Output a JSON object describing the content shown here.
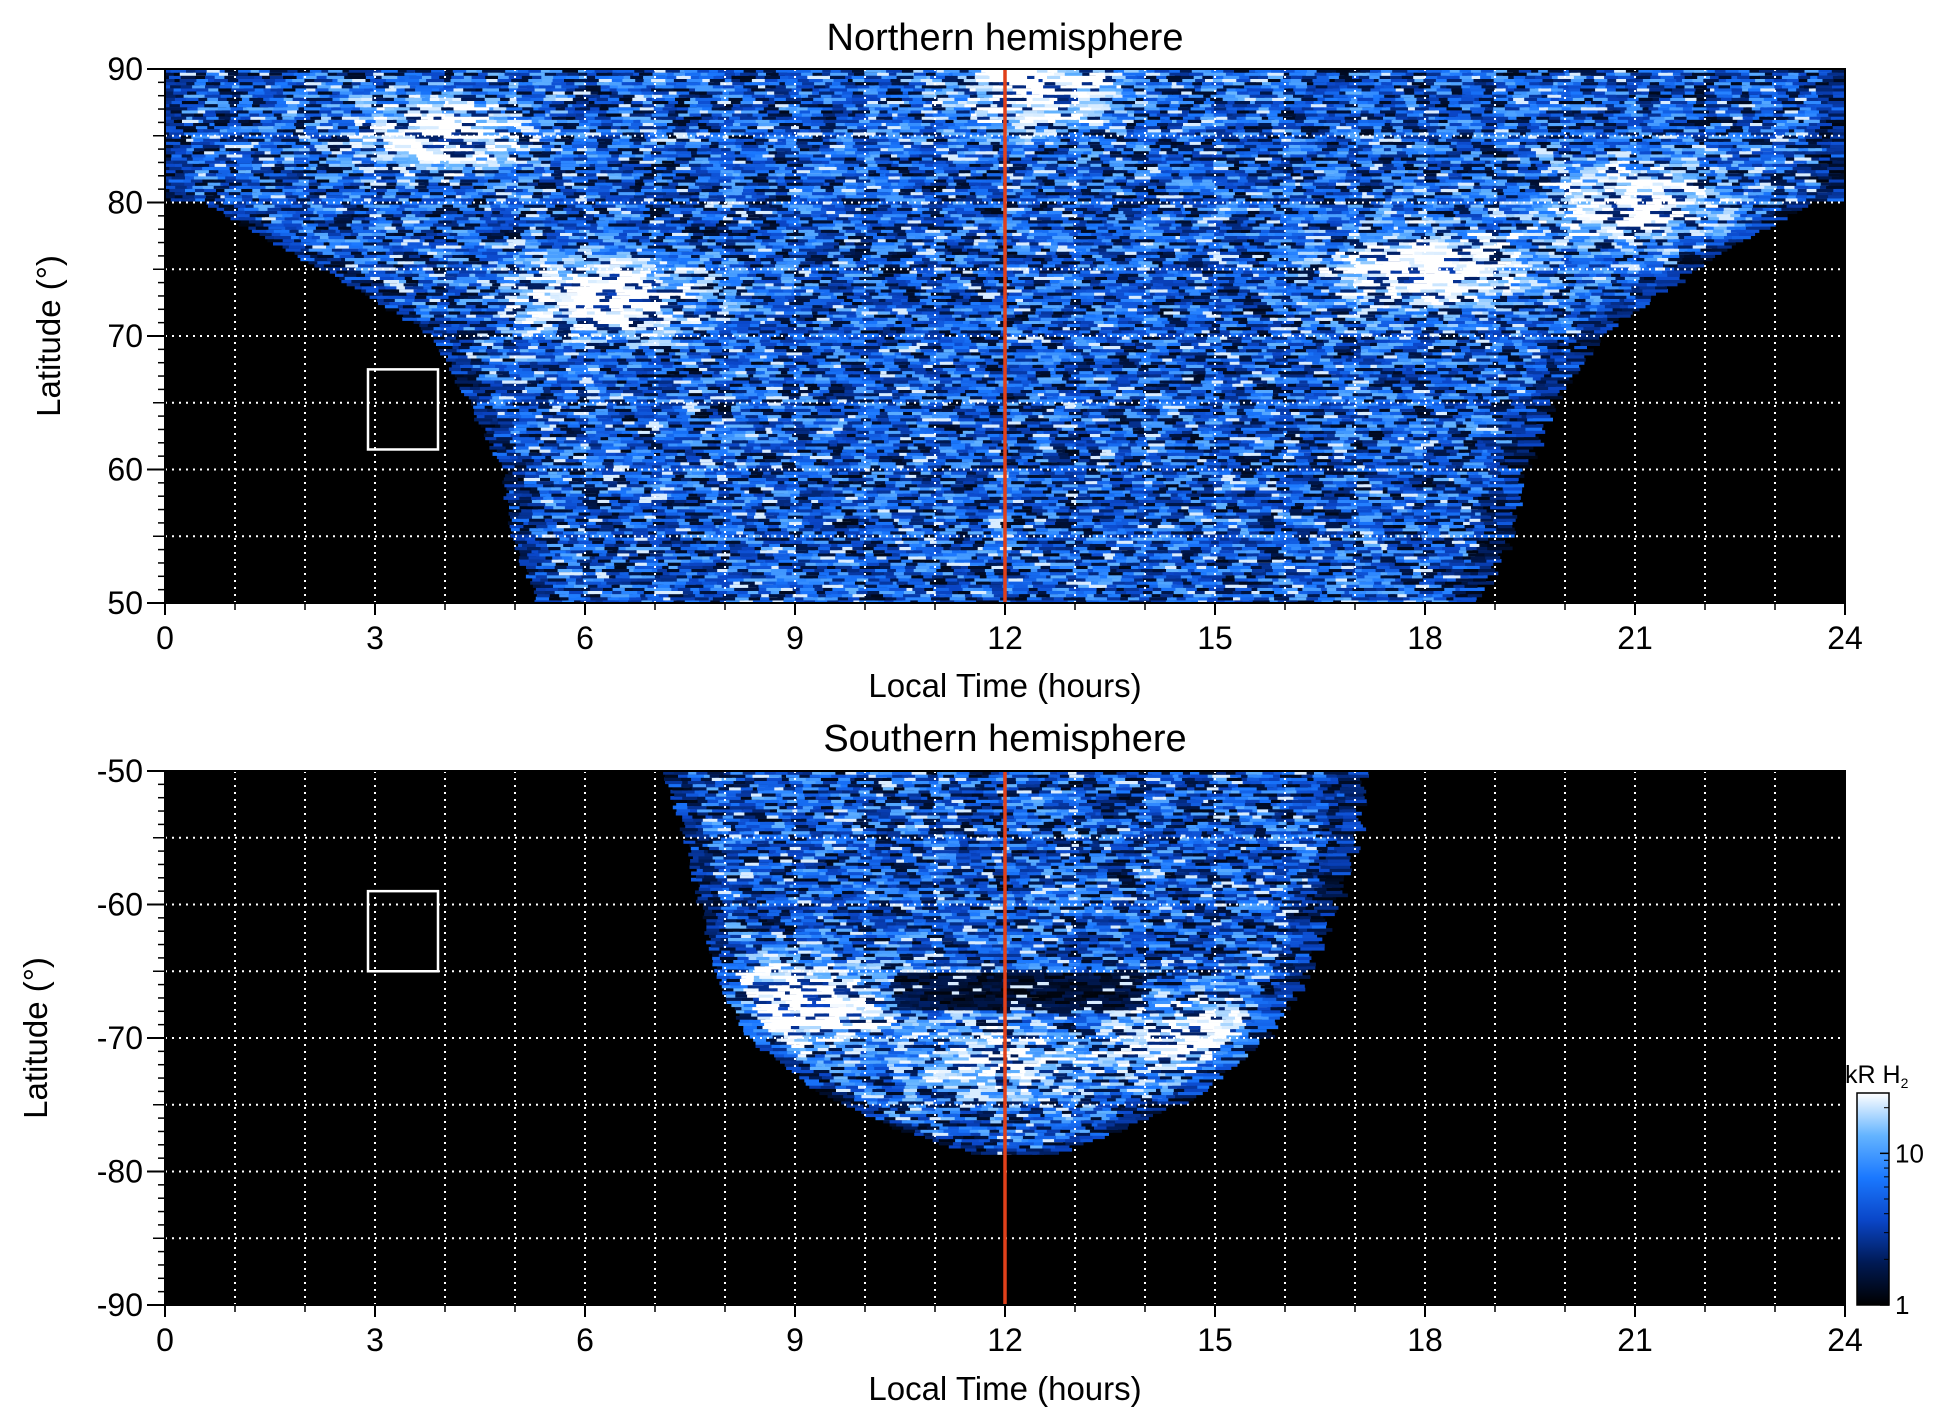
{
  "chart_data": [
    {
      "type": "heatmap",
      "title": "Northern hemisphere",
      "xlabel": "Local Time (hours)",
      "ylabel": "Latitude (°)",
      "xlim": [
        0,
        24
      ],
      "ylim": [
        50,
        90
      ],
      "xticks": [
        "0",
        "3",
        "6",
        "9",
        "12",
        "15",
        "18",
        "21",
        "24"
      ],
      "yticks": [
        "50",
        "60",
        "70",
        "80",
        "90"
      ],
      "grid": true,
      "reference_line": {
        "local_time": 12,
        "color": "#e0401a"
      },
      "box": {
        "lt": [
          2.9,
          3.9
        ],
        "lat": [
          61.5,
          67.5
        ]
      },
      "background": "#000000",
      "cmap": [
        "#000000",
        "#001a55",
        "#0a46c8",
        "#1a78ff",
        "#64b4ff",
        "#ffffff"
      ],
      "coverage": [
        {
          "lat": 90,
          "lt_min": 0.0,
          "lt_max": 24.0
        },
        {
          "lat": 85,
          "lt_min": 0.0,
          "lt_max": 24.0
        },
        {
          "lat": 80.2,
          "lt_min": 0.0,
          "lt_max": 24.0
        },
        {
          "lat": 80,
          "lt_min": 0.6,
          "lt_max": 23.4
        },
        {
          "lat": 75,
          "lt_min": 2.3,
          "lt_max": 21.7
        },
        {
          "lat": 70,
          "lt_min": 3.9,
          "lt_max": 20.4
        },
        {
          "lat": 65,
          "lt_min": 4.4,
          "lt_max": 19.7
        },
        {
          "lat": 60,
          "lt_min": 4.9,
          "lt_max": 19.3
        },
        {
          "lat": 55,
          "lt_min": 5.0,
          "lt_max": 19.1
        },
        {
          "lat": 50,
          "lt_min": 5.4,
          "lt_max": 18.6
        }
      ],
      "bright_regions": [
        {
          "lt": 6.3,
          "lat": 73.0,
          "intensity": 0.9
        },
        {
          "lt": 18.0,
          "lat": 75.0,
          "intensity": 0.9
        },
        {
          "lt": 21.0,
          "lat": 80.0,
          "intensity": 0.75
        },
        {
          "lt": 4.0,
          "lat": 85.0,
          "intensity": 0.75
        },
        {
          "lt": 12.5,
          "lat": 88.5,
          "intensity": 0.8
        }
      ]
    },
    {
      "type": "heatmap",
      "title": "Southern hemisphere",
      "xlabel": "Local Time (hours)",
      "ylabel": "Latitude (°)",
      "xlim": [
        0,
        24
      ],
      "ylim": [
        -90,
        -50
      ],
      "xticks": [
        "0",
        "3",
        "6",
        "9",
        "12",
        "15",
        "18",
        "21",
        "24"
      ],
      "yticks": [
        "-90",
        "-80",
        "-70",
        "-60",
        "-50"
      ],
      "grid": true,
      "reference_line": {
        "local_time": 12,
        "color": "#e0401a"
      },
      "box": {
        "lt": [
          2.9,
          3.9
        ],
        "lat": [
          -65,
          -59
        ]
      },
      "background": "#000000",
      "cmap": [
        "#000000",
        "#001a55",
        "#0a46c8",
        "#1a78ff",
        "#64b4ff",
        "#ffffff"
      ],
      "coverage": [
        {
          "lat": -50,
          "lt_min": 7.2,
          "lt_max": 17.0
        },
        {
          "lat": -55,
          "lt_min": 7.5,
          "lt_max": 16.9
        },
        {
          "lat": -60,
          "lt_min": 7.7,
          "lt_max": 16.6
        },
        {
          "lat": -65,
          "lt_min": 7.9,
          "lt_max": 16.2
        },
        {
          "lat": -70,
          "lt_min": 8.4,
          "lt_max": 15.6
        },
        {
          "lat": -74,
          "lt_min": 9.4,
          "lt_max": 14.7
        },
        {
          "lat": -77,
          "lt_min": 10.6,
          "lt_max": 13.5
        },
        {
          "lat": -78.6,
          "lt_min": 11.6,
          "lt_max": 12.6
        }
      ],
      "bright_regions": [
        {
          "lt": 9.0,
          "lat": -67.5,
          "intensity": 1.0
        },
        {
          "lt": 15.0,
          "lat": -70.0,
          "intensity": 0.75
        },
        {
          "lt": 12.0,
          "lat": -72.0,
          "intensity": 0.6
        }
      ],
      "dark_band": {
        "lat": [
          -68,
          -65
        ],
        "lt": [
          10.5,
          14.0
        ]
      }
    }
  ],
  "colorbar": {
    "label": "kR H",
    "label_subscript": "2",
    "scale": "log",
    "range": [
      1,
      25
    ],
    "ticks": [
      "1",
      "10"
    ],
    "colors": [
      "#000000",
      "#001a55",
      "#0a46c8",
      "#1a78ff",
      "#64b4ff",
      "#ffffff"
    ]
  }
}
